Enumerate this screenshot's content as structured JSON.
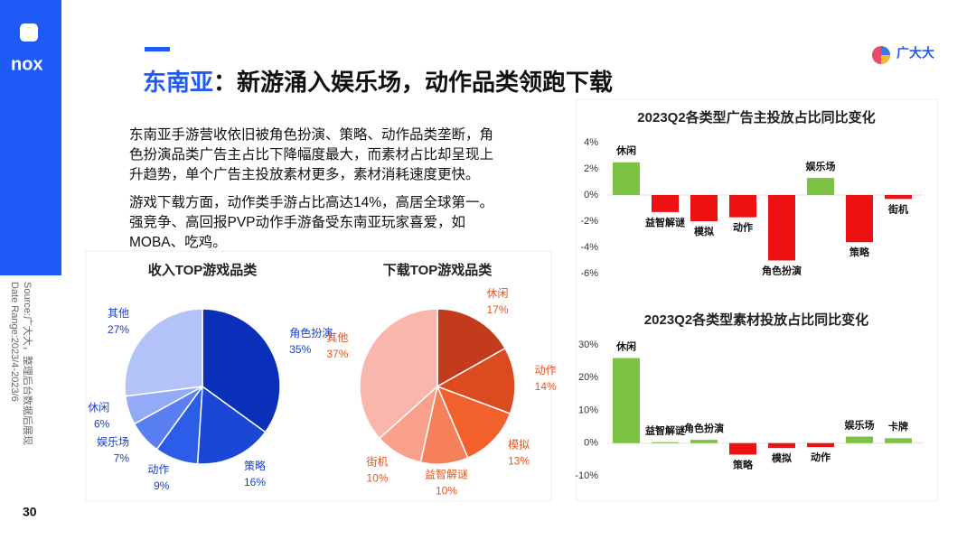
{
  "header": {
    "title_prefix": "东南亚",
    "title": "：新游涌入娱乐场，动作品类领跑下载"
  },
  "logo": {
    "left": "nox",
    "right": "广大大"
  },
  "paragraphs": [
    "东南亚手游营收依旧被角色扮演、策略、动作品类垄断，角色扮演品类广告主占比下降幅度最大，而素材占比却呈现上升趋势，单个广告主投放素材更多，素材消耗速度更快。",
    "游戏下载方面，动作类手游占比高达14%，高居全球第一。强竞争、高回报PVP动作手游备受东南亚玩家喜爱，如MOBA、吃鸡。"
  ],
  "source": [
    "Source:广大大，整理后台数据后展现",
    "Date Range:2023/4-2023/6"
  ],
  "page_number": "30",
  "chart_data": [
    {
      "type": "pie",
      "title": "收入TOP游戏品类",
      "categories": [
        "角色扮演",
        "策略",
        "动作",
        "娱乐场",
        "休闲",
        "其他"
      ],
      "values": [
        35,
        16,
        9,
        7,
        6,
        27
      ],
      "value_labels": [
        "35%",
        "16%",
        "9%",
        "7%",
        "6%",
        "27%"
      ],
      "colors": [
        "#0a2fb8",
        "#1a47d6",
        "#2c5de8",
        "#5a7ff0",
        "#93aaf6",
        "#b3c3f8"
      ],
      "label_color": "#1a3fc7"
    },
    {
      "type": "pie",
      "title": "下载TOP游戏品类",
      "categories": [
        "休闲",
        "动作",
        "模拟",
        "益智解谜",
        "街机",
        "其他"
      ],
      "values": [
        17,
        14,
        13,
        10,
        10,
        37
      ],
      "value_labels": [
        "17%",
        "14%",
        "13%",
        "10%",
        "10%",
        "37%"
      ],
      "colors": [
        "#c23b1c",
        "#dc4a1f",
        "#f2602c",
        "#f6805a",
        "#f8a08a",
        "#f8b6ad"
      ],
      "label_color": "#e8531e"
    },
    {
      "type": "bar",
      "title": "2023Q2各类型广告主投放占比同比变化",
      "categories": [
        "休闲",
        "益智解谜",
        "模拟",
        "动作",
        "角色扮演",
        "娱乐场",
        "策略",
        "街机"
      ],
      "values": [
        2.5,
        -1.3,
        -2,
        -1.7,
        -5,
        1.3,
        -3.6,
        -0.3
      ],
      "ylim": [
        -6,
        4
      ],
      "yticks": [
        {
          "value": -6,
          "label": "-6%"
        },
        {
          "value": -4,
          "label": "-4%"
        },
        {
          "value": -2,
          "label": "-2%"
        },
        {
          "value": 0,
          "label": "0%"
        },
        {
          "value": 2,
          "label": "2%"
        },
        {
          "value": 4,
          "label": "4%"
        }
      ],
      "color_positive": "#7dc242",
      "color_negative": "#ee1111"
    },
    {
      "type": "bar",
      "title": "2023Q2各类型素材投放占比同比变化",
      "categories": [
        "休闲",
        "益智解谜",
        "角色扮演",
        "策略",
        "模拟",
        "动作",
        "娱乐场",
        "卡牌"
      ],
      "values": [
        26,
        0.3,
        1,
        -3.5,
        -1.5,
        -1.2,
        2,
        1.5
      ],
      "ylim": [
        -10,
        30
      ],
      "yticks": [
        {
          "value": -10,
          "label": "-10%"
        },
        {
          "value": 0,
          "label": "0%"
        },
        {
          "value": 10,
          "label": "10%"
        },
        {
          "value": 20,
          "label": "20%"
        },
        {
          "value": 30,
          "label": "30%"
        }
      ],
      "color_positive": "#7dc242",
      "color_negative": "#ee1111"
    }
  ]
}
